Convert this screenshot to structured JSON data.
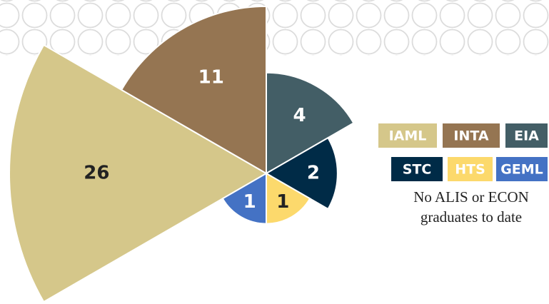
{
  "chart_data": {
    "type": "rose",
    "categories": [
      "IAML",
      "INTA",
      "EIA",
      "STC",
      "HTS",
      "GEML"
    ],
    "values": [
      26,
      11,
      4,
      2,
      1,
      1
    ],
    "colors": [
      "#d5c78a",
      "#957552",
      "#435e66",
      "#002b47",
      "#fcd96c",
      "#4472c4"
    ],
    "note": [
      "No ALIS or ECON",
      "graduates to date"
    ]
  }
}
